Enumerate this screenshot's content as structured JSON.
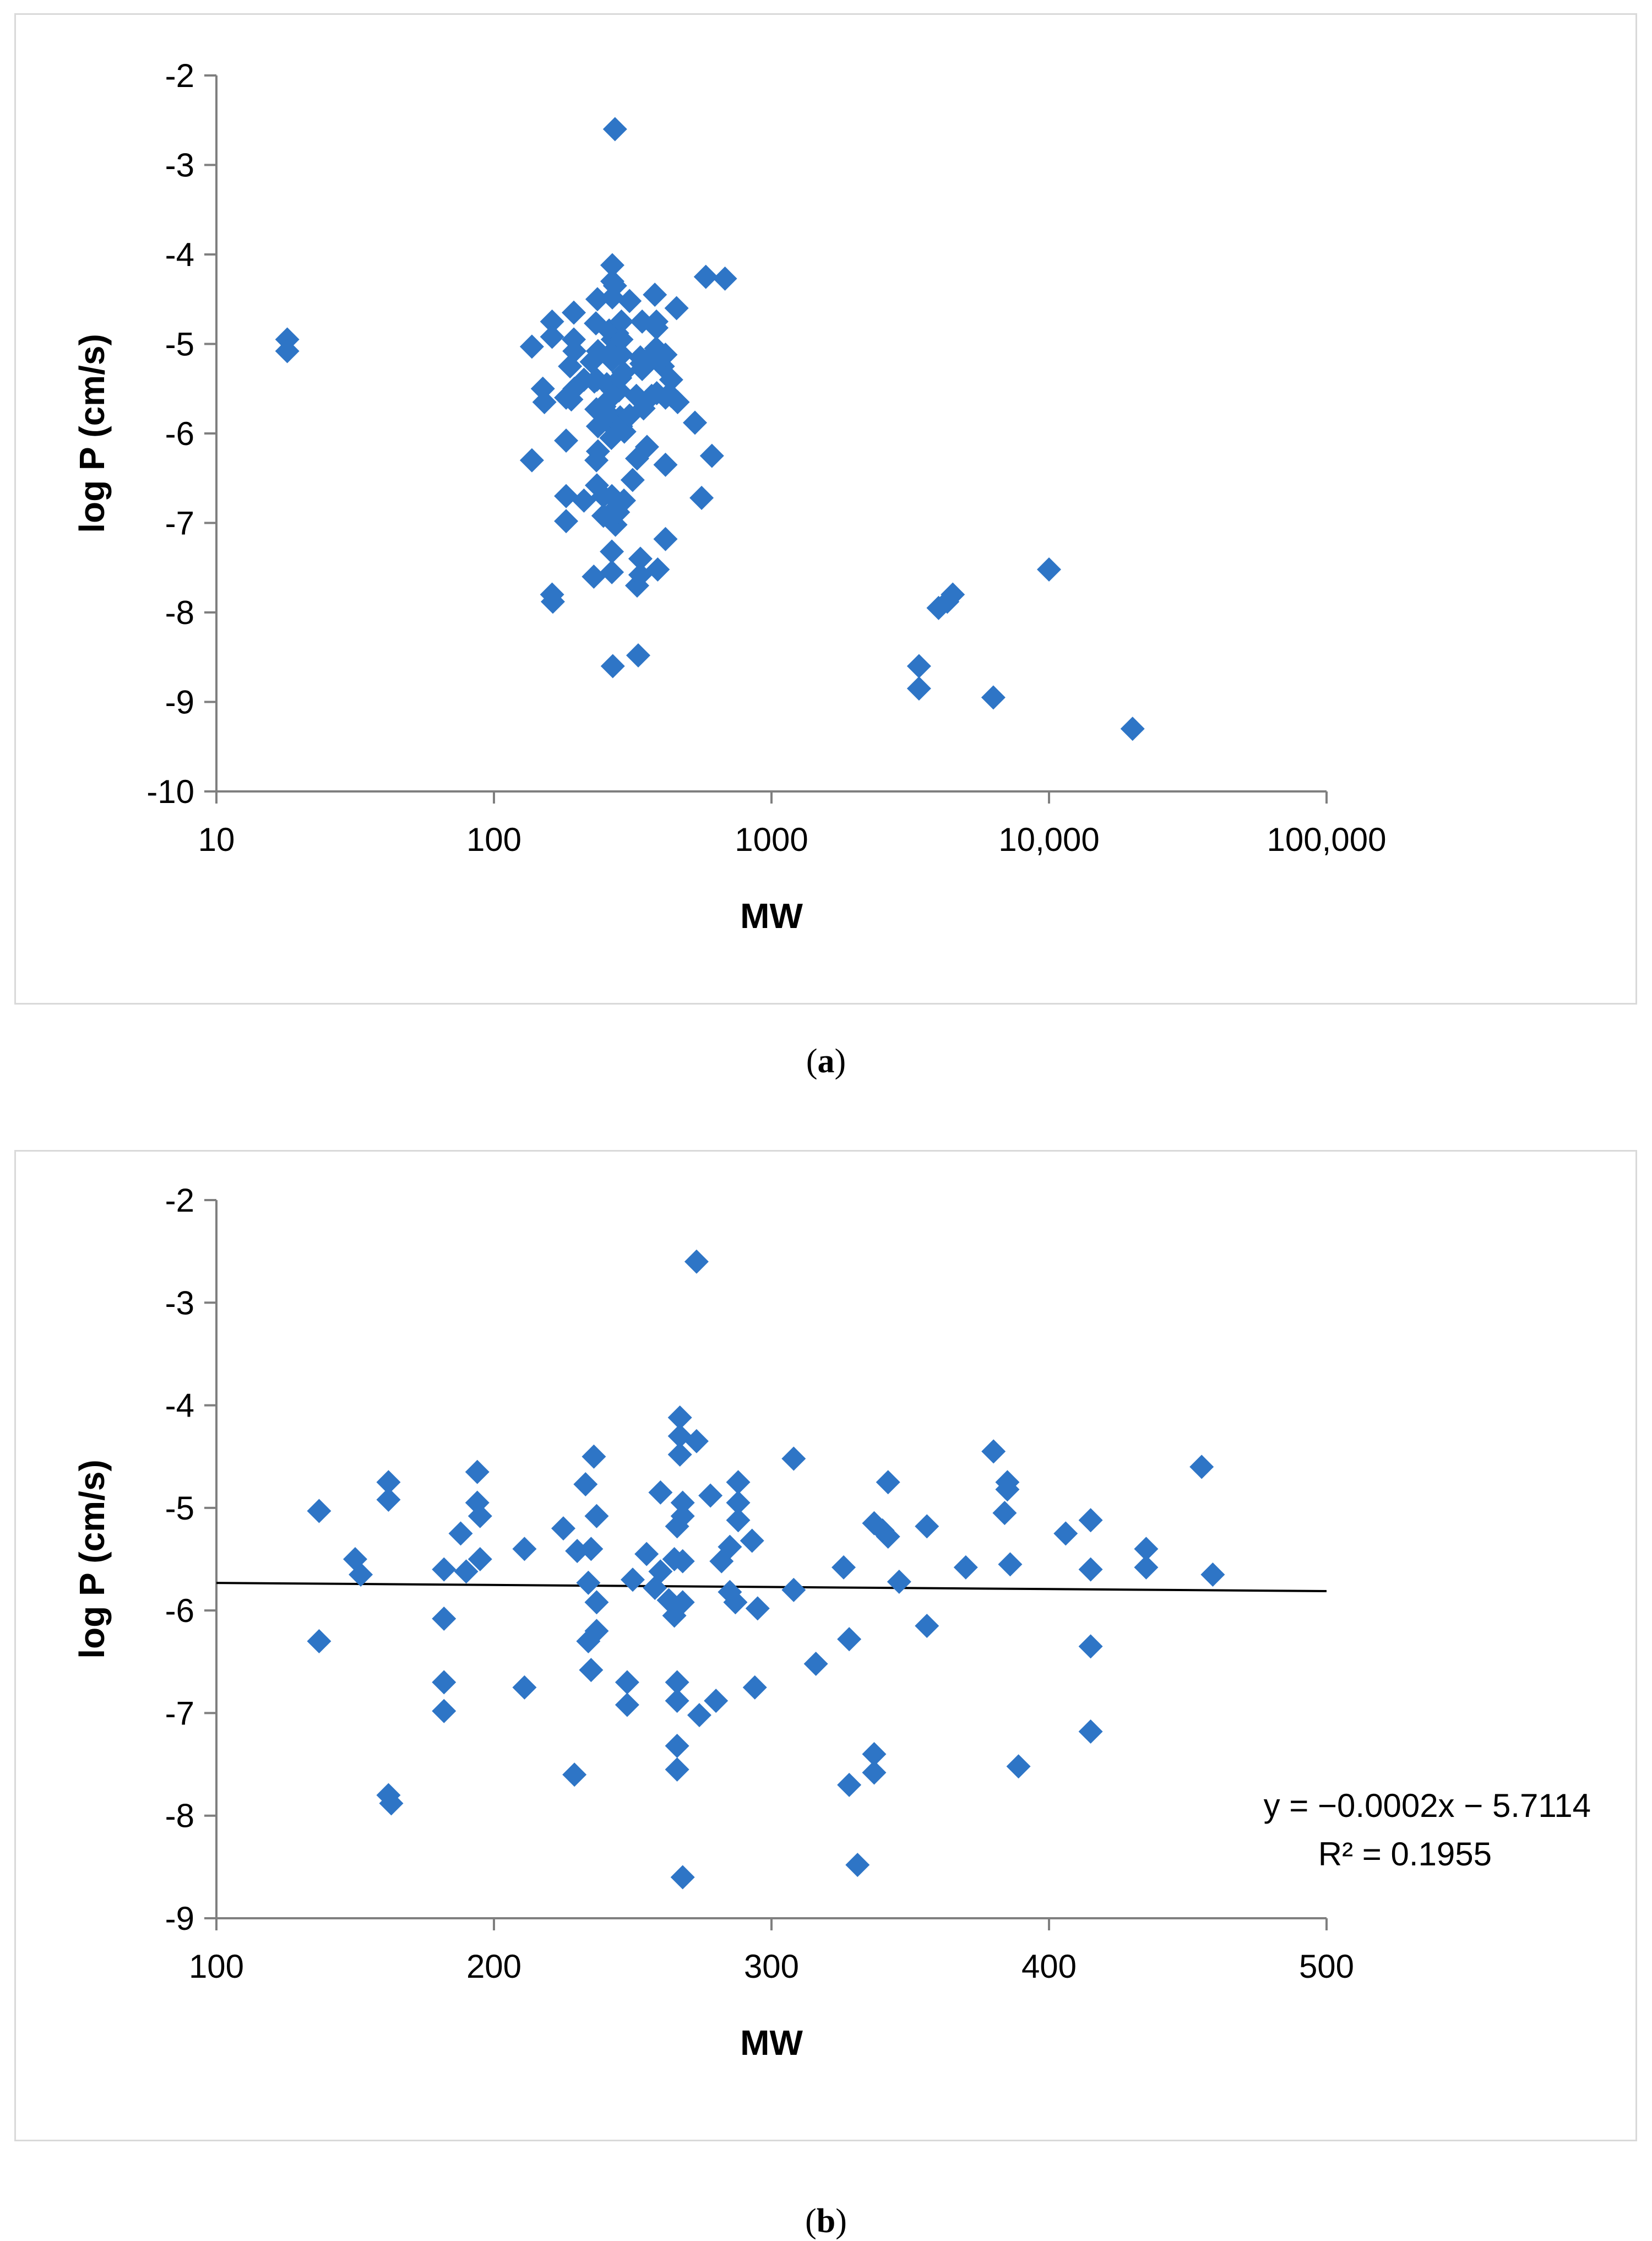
{
  "colors": {
    "marker": "#2E75C6",
    "axis": "#7f7f7f",
    "trendline": "#000000",
    "border": "#d9d9d9"
  },
  "chart_data": [
    {
      "type": "scatter",
      "panel": "a",
      "caption_prefix": "(",
      "caption_letter": "a",
      "caption_suffix": ")",
      "xlabel": "MW",
      "ylabel": "log P (cm/s)",
      "xscale": "log",
      "xlim": [
        10,
        100000
      ],
      "ylim": [
        -10,
        -2
      ],
      "xticks": [
        10,
        100,
        1000,
        10000,
        100000
      ],
      "xtick_labels": [
        "10",
        "100",
        "1000",
        "10,000",
        "100,000"
      ],
      "yticks": [
        -2,
        -3,
        -4,
        -5,
        -6,
        -7,
        -8,
        -9,
        -10
      ],
      "ytick_labels": [
        "-2",
        "-3",
        "-4",
        "-5",
        "-6",
        "-7",
        "-8",
        "-9",
        "-10"
      ],
      "marker": "diamond",
      "points": [
        [
          18,
          -4.95
        ],
        [
          18,
          -5.08
        ],
        [
          137,
          -5.03
        ],
        [
          137,
          -6.3
        ],
        [
          150,
          -5.5
        ],
        [
          152,
          -5.65
        ],
        [
          162,
          -4.75
        ],
        [
          162,
          -4.92
        ],
        [
          162,
          -7.8
        ],
        [
          163,
          -7.88
        ],
        [
          182,
          -5.6
        ],
        [
          182,
          -6.08
        ],
        [
          182,
          -6.7
        ],
        [
          182,
          -6.98
        ],
        [
          188,
          -5.25
        ],
        [
          190,
          -5.62
        ],
        [
          194,
          -4.65
        ],
        [
          194,
          -4.95
        ],
        [
          195,
          -5.08
        ],
        [
          195,
          -5.5
        ],
        [
          211,
          -5.4
        ],
        [
          211,
          -6.75
        ],
        [
          225,
          -5.2
        ],
        [
          229,
          -7.6
        ],
        [
          230,
          -5.42
        ],
        [
          233,
          -4.77
        ],
        [
          234,
          -5.73
        ],
        [
          234,
          -6.3
        ],
        [
          235,
          -5.4
        ],
        [
          235,
          -6.58
        ],
        [
          236,
          -4.5
        ],
        [
          237,
          -5.08
        ],
        [
          237,
          -5.92
        ],
        [
          237,
          -6.2
        ],
        [
          248,
          -6.7
        ],
        [
          248,
          -6.92
        ],
        [
          250,
          -5.7
        ],
        [
          255,
          -5.45
        ],
        [
          258,
          -5.78
        ],
        [
          260,
          -4.85
        ],
        [
          260,
          -5.62
        ],
        [
          263,
          -5.9
        ],
        [
          265,
          -5.5
        ],
        [
          265,
          -6.05
        ],
        [
          266,
          -5.18
        ],
        [
          266,
          -6.7
        ],
        [
          266,
          -6.88
        ],
        [
          266,
          -7.32
        ],
        [
          266,
          -7.55
        ],
        [
          267,
          -4.12
        ],
        [
          267,
          -4.3
        ],
        [
          267,
          -4.48
        ],
        [
          268,
          -4.95
        ],
        [
          268,
          -5.08
        ],
        [
          268,
          -5.52
        ],
        [
          268,
          -5.92
        ],
        [
          268,
          -8.6
        ],
        [
          273,
          -2.6
        ],
        [
          273,
          -4.35
        ],
        [
          274,
          -7.02
        ],
        [
          278,
          -4.88
        ],
        [
          280,
          -6.88
        ],
        [
          282,
          -5.52
        ],
        [
          285,
          -5.82
        ],
        [
          285,
          -5.38
        ],
        [
          287,
          -5.92
        ],
        [
          288,
          -4.75
        ],
        [
          288,
          -4.95
        ],
        [
          288,
          -5.12
        ],
        [
          293,
          -5.32
        ],
        [
          294,
          -6.75
        ],
        [
          295,
          -5.98
        ],
        [
          308,
          -4.52
        ],
        [
          308,
          -5.8
        ],
        [
          316,
          -6.52
        ],
        [
          326,
          -5.58
        ],
        [
          328,
          -6.28
        ],
        [
          328,
          -7.7
        ],
        [
          331,
          -8.48
        ],
        [
          337,
          -5.15
        ],
        [
          337,
          -7.4
        ],
        [
          337,
          -7.58
        ],
        [
          342,
          -4.75
        ],
        [
          342,
          -5.28
        ],
        [
          340,
          -5.22
        ],
        [
          346,
          -5.72
        ],
        [
          356,
          -5.18
        ],
        [
          356,
          -6.15
        ],
        [
          370,
          -5.58
        ],
        [
          380,
          -4.45
        ],
        [
          384,
          -5.05
        ],
        [
          385,
          -4.75
        ],
        [
          385,
          -4.82
        ],
        [
          386,
          -5.55
        ],
        [
          389,
          -7.52
        ],
        [
          406,
          -5.25
        ],
        [
          415,
          -5.12
        ],
        [
          415,
          -5.6
        ],
        [
          415,
          -6.35
        ],
        [
          415,
          -7.18
        ],
        [
          435,
          -5.4
        ],
        [
          435,
          -5.58
        ],
        [
          455,
          -4.6
        ],
        [
          459,
          -5.65
        ],
        [
          530,
          -5.88
        ],
        [
          560,
          -6.72
        ],
        [
          580,
          -4.25
        ],
        [
          610,
          -6.25
        ],
        [
          680,
          -4.27
        ],
        [
          3400,
          -8.6
        ],
        [
          3400,
          -8.85
        ],
        [
          4000,
          -7.95
        ],
        [
          4300,
          -7.88
        ],
        [
          4500,
          -7.8
        ],
        [
          6300,
          -8.95
        ],
        [
          10000,
          -7.52
        ],
        [
          20000,
          -9.3
        ]
      ]
    },
    {
      "type": "scatter",
      "panel": "b",
      "caption_prefix": "(",
      "caption_letter": "b",
      "caption_suffix": ")",
      "xlabel": "MW",
      "ylabel": "log P (cm/s)",
      "xscale": "linear",
      "xlim": [
        100,
        500
      ],
      "ylim": [
        -9,
        -2
      ],
      "xticks": [
        100,
        200,
        300,
        400,
        500
      ],
      "xtick_labels": [
        "100",
        "200",
        "300",
        "400",
        "500"
      ],
      "yticks": [
        -2,
        -3,
        -4,
        -5,
        -6,
        -7,
        -8,
        -9
      ],
      "ytick_labels": [
        "-2",
        "-3",
        "-4",
        "-5",
        "-6",
        "-7",
        "-8",
        "-9"
      ],
      "marker": "diamond",
      "trendline": {
        "slope": -0.0002,
        "intercept": -5.7114,
        "x_range": [
          100,
          500
        ]
      },
      "equation": "y = −0.0002x − 5.7114",
      "r_squared": "R² = 0.1955",
      "points": [
        [
          137,
          -5.03
        ],
        [
          137,
          -6.3
        ],
        [
          150,
          -5.5
        ],
        [
          152,
          -5.65
        ],
        [
          162,
          -4.75
        ],
        [
          162,
          -4.92
        ],
        [
          162,
          -7.8
        ],
        [
          163,
          -7.88
        ],
        [
          182,
          -5.6
        ],
        [
          182,
          -6.08
        ],
        [
          182,
          -6.7
        ],
        [
          182,
          -6.98
        ],
        [
          188,
          -5.25
        ],
        [
          190,
          -5.62
        ],
        [
          194,
          -4.65
        ],
        [
          194,
          -4.95
        ],
        [
          195,
          -5.08
        ],
        [
          195,
          -5.5
        ],
        [
          211,
          -5.4
        ],
        [
          211,
          -6.75
        ],
        [
          225,
          -5.2
        ],
        [
          229,
          -7.6
        ],
        [
          230,
          -5.42
        ],
        [
          233,
          -4.77
        ],
        [
          234,
          -5.73
        ],
        [
          234,
          -6.3
        ],
        [
          235,
          -5.4
        ],
        [
          235,
          -6.58
        ],
        [
          236,
          -4.5
        ],
        [
          237,
          -5.08
        ],
        [
          237,
          -5.92
        ],
        [
          237,
          -6.2
        ],
        [
          248,
          -6.7
        ],
        [
          248,
          -6.92
        ],
        [
          250,
          -5.7
        ],
        [
          255,
          -5.45
        ],
        [
          258,
          -5.78
        ],
        [
          260,
          -4.85
        ],
        [
          260,
          -5.62
        ],
        [
          263,
          -5.9
        ],
        [
          265,
          -5.5
        ],
        [
          265,
          -6.05
        ],
        [
          266,
          -5.18
        ],
        [
          266,
          -6.7
        ],
        [
          266,
          -6.88
        ],
        [
          266,
          -7.32
        ],
        [
          266,
          -7.55
        ],
        [
          267,
          -4.12
        ],
        [
          267,
          -4.3
        ],
        [
          267,
          -4.48
        ],
        [
          268,
          -4.95
        ],
        [
          268,
          -5.08
        ],
        [
          268,
          -5.52
        ],
        [
          268,
          -5.92
        ],
        [
          268,
          -8.6
        ],
        [
          273,
          -2.6
        ],
        [
          273,
          -4.35
        ],
        [
          274,
          -7.02
        ],
        [
          278,
          -4.88
        ],
        [
          280,
          -6.88
        ],
        [
          282,
          -5.52
        ],
        [
          285,
          -5.82
        ],
        [
          285,
          -5.38
        ],
        [
          287,
          -5.92
        ],
        [
          288,
          -4.75
        ],
        [
          288,
          -4.95
        ],
        [
          288,
          -5.12
        ],
        [
          293,
          -5.32
        ],
        [
          294,
          -6.75
        ],
        [
          295,
          -5.98
        ],
        [
          308,
          -4.52
        ],
        [
          308,
          -5.8
        ],
        [
          316,
          -6.52
        ],
        [
          326,
          -5.58
        ],
        [
          328,
          -6.28
        ],
        [
          328,
          -7.7
        ],
        [
          331,
          -8.48
        ],
        [
          337,
          -5.15
        ],
        [
          337,
          -7.4
        ],
        [
          337,
          -7.58
        ],
        [
          342,
          -4.75
        ],
        [
          342,
          -5.28
        ],
        [
          340,
          -5.22
        ],
        [
          346,
          -5.72
        ],
        [
          356,
          -5.18
        ],
        [
          356,
          -6.15
        ],
        [
          370,
          -5.58
        ],
        [
          380,
          -4.45
        ],
        [
          384,
          -5.05
        ],
        [
          385,
          -4.75
        ],
        [
          385,
          -4.82
        ],
        [
          386,
          -5.55
        ],
        [
          389,
          -7.52
        ],
        [
          406,
          -5.25
        ],
        [
          415,
          -5.12
        ],
        [
          415,
          -5.6
        ],
        [
          415,
          -6.35
        ],
        [
          415,
          -7.18
        ],
        [
          435,
          -5.4
        ],
        [
          435,
          -5.58
        ],
        [
          455,
          -4.6
        ],
        [
          459,
          -5.65
        ]
      ]
    }
  ]
}
